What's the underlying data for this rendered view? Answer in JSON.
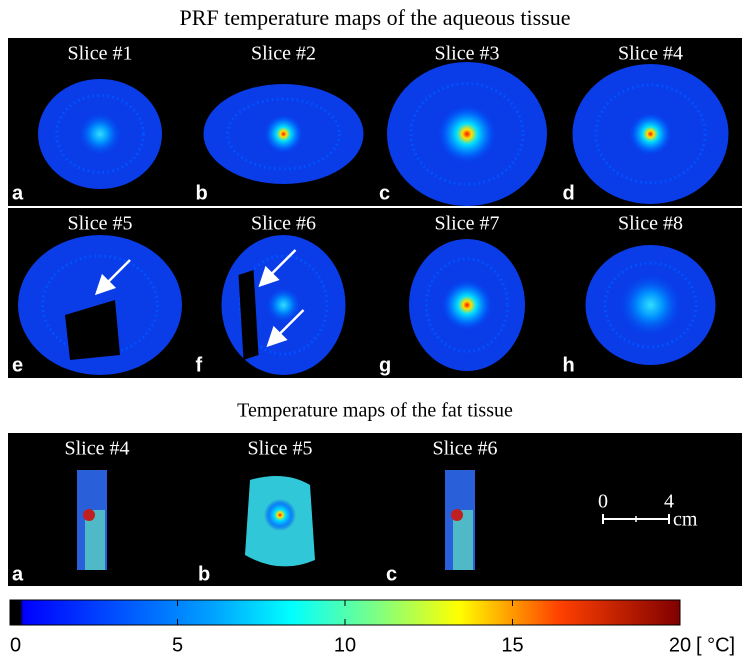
{
  "figure": {
    "top_title": "PRF temperature maps of the aqueous tissue",
    "top_panels": [
      {
        "slice": "Slice #1",
        "letter": "a"
      },
      {
        "slice": "Slice #2",
        "letter": "b"
      },
      {
        "slice": "Slice #3",
        "letter": "c"
      },
      {
        "slice": "Slice #4",
        "letter": "d"
      },
      {
        "slice": "Slice #5",
        "letter": "e"
      },
      {
        "slice": "Slice #6",
        "letter": "f"
      },
      {
        "slice": "Slice #7",
        "letter": "g"
      },
      {
        "slice": "Slice #8",
        "letter": "h"
      }
    ],
    "bottom_title": "Temperature maps of the fat tissue",
    "bottom_panels": [
      {
        "slice": "Slice #4",
        "letter": "a"
      },
      {
        "slice": "Slice #5",
        "letter": "b"
      },
      {
        "slice": "Slice #6",
        "letter": "c"
      }
    ],
    "scale_bar": {
      "ticks": [
        0,
        4
      ],
      "unit": "cm"
    },
    "colorbar": {
      "lim": [
        0,
        20
      ],
      "ticks": [
        0,
        5,
        10,
        15,
        20
      ],
      "unit": "[ °C]"
    }
  }
}
